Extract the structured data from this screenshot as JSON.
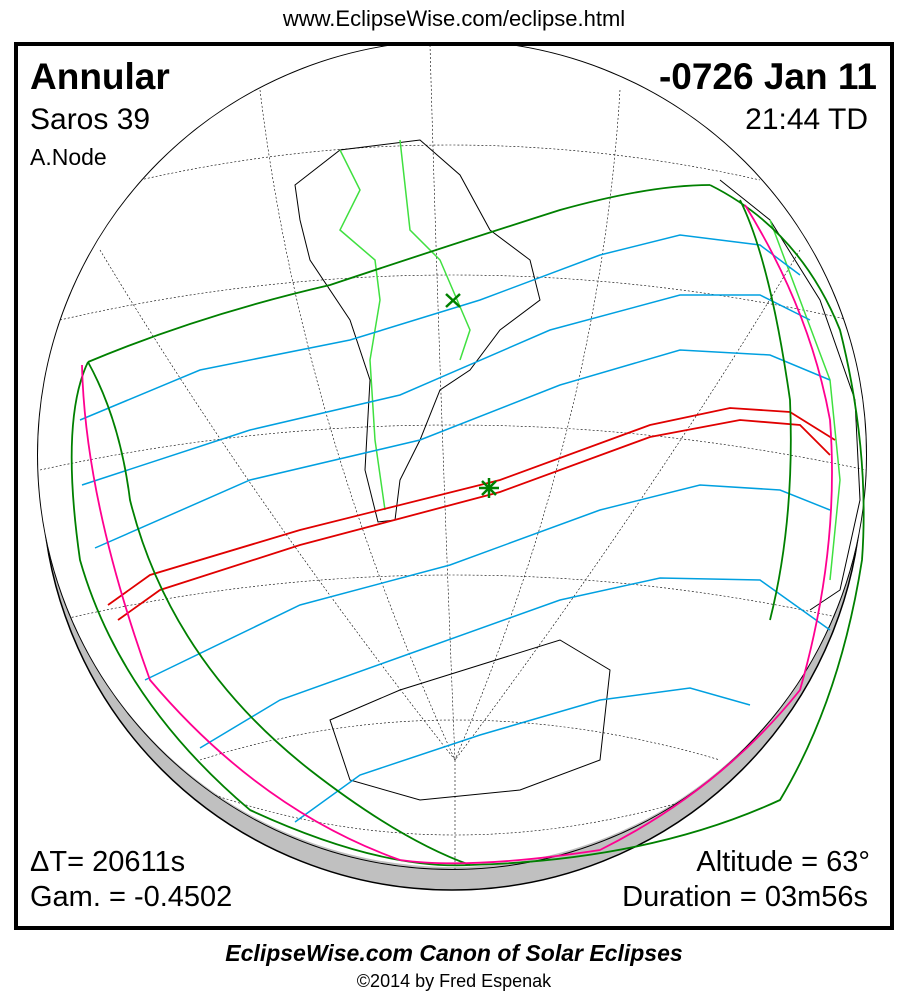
{
  "header": {
    "url": "www.EclipseWise.com/eclipse.html"
  },
  "eclipse": {
    "type": "Annular",
    "date": "-0726 Jan 11",
    "saros": "Saros  39",
    "time": "21:44 TD",
    "node": "A.Node",
    "delta_t": "ΔT=  20611s",
    "gamma": "Gam. = -0.4502",
    "altitude": "Altitude = 63°",
    "duration": "Duration = 03m56s"
  },
  "footer": {
    "title": "EclipseWise.com Canon of Solar Eclipses",
    "copyright": "©2014 by Fred Espenak"
  },
  "colors": {
    "central_path": "#e00000",
    "limits": "#008000",
    "penumbra_lines": "#00a0e0",
    "rise_set": "#ff0090",
    "borders": "#40e040",
    "night_side": "#c0c0c0"
  }
}
